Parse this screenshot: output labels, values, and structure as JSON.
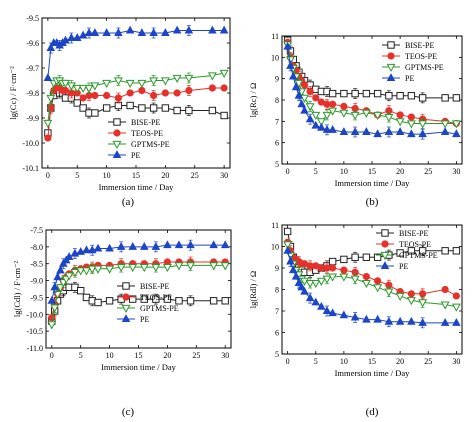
{
  "chart_data": [
    {
      "type": "line",
      "panel_label": "(a)",
      "xlabel": "Immersion time / Day",
      "ylabel": "lg(Cc) / F·cm⁻²",
      "xlim": [
        -1,
        31
      ],
      "ylim": [
        -10.1,
        -9.5
      ],
      "xticks": [
        0,
        5,
        10,
        15,
        20,
        25,
        30
      ],
      "yticks": [
        -10.1,
        -10.0,
        -9.9,
        -9.8,
        -9.7,
        -9.6,
        -9.5
      ],
      "ytick_labels": [
        "-10.1",
        "-10.0",
        "-9.9",
        "-9.8",
        "-9.7",
        "-9.6",
        "-9.5"
      ],
      "legend_position": "lower-right",
      "series": [
        {
          "name": "BISE-PE",
          "marker": "square-open",
          "color": "#222222",
          "x": [
            0,
            0.5,
            1,
            1.5,
            2,
            2.5,
            3,
            4,
            5,
            6,
            7,
            8,
            10,
            12,
            14,
            16,
            18,
            20,
            22,
            24,
            28,
            30
          ],
          "y": [
            -9.96,
            -9.86,
            -9.81,
            -9.79,
            -9.8,
            -9.8,
            -9.82,
            -9.82,
            -9.84,
            -9.86,
            -9.88,
            -9.88,
            -9.86,
            -9.85,
            -9.85,
            -9.86,
            -9.86,
            -9.86,
            -9.87,
            -9.87,
            -9.87,
            -9.89
          ]
        },
        {
          "name": "TEOS-PE",
          "marker": "circle-filled",
          "color": "#e8302a",
          "x": [
            0,
            0.5,
            1,
            1.5,
            2,
            2.5,
            3,
            4,
            5,
            6,
            7,
            8,
            10,
            12,
            14,
            16,
            18,
            20,
            22,
            24,
            28,
            30
          ],
          "y": [
            -9.98,
            -9.86,
            -9.79,
            -9.78,
            -9.78,
            -9.79,
            -9.79,
            -9.8,
            -9.8,
            -9.82,
            -9.81,
            -9.81,
            -9.81,
            -9.82,
            -9.8,
            -9.79,
            -9.81,
            -9.8,
            -9.8,
            -9.79,
            -9.78,
            -9.78
          ]
        },
        {
          "name": "GPTMS-PE",
          "marker": "triangle-down-open",
          "color": "#2a9a2a",
          "x": [
            0,
            0.5,
            1,
            1.5,
            2,
            2.5,
            3,
            4,
            5,
            6,
            7,
            8,
            10,
            12,
            14,
            16,
            18,
            20,
            22,
            24,
            28,
            30
          ],
          "y": [
            -9.92,
            -9.82,
            -9.76,
            -9.75,
            -9.75,
            -9.76,
            -9.76,
            -9.77,
            -9.78,
            -9.78,
            -9.78,
            -9.77,
            -9.76,
            -9.75,
            -9.76,
            -9.76,
            -9.75,
            -9.75,
            -9.74,
            -9.74,
            -9.73,
            -9.72
          ]
        },
        {
          "name": "PE",
          "marker": "triangle-up-filled",
          "color": "#1c45c8",
          "x": [
            0,
            0.5,
            1,
            1.5,
            2,
            2.5,
            3,
            4,
            5,
            6,
            7,
            8,
            10,
            12,
            14,
            16,
            18,
            20,
            22,
            24,
            28,
            30
          ],
          "y": [
            -9.74,
            -9.62,
            -9.6,
            -9.6,
            -9.61,
            -9.6,
            -9.59,
            -9.58,
            -9.58,
            -9.57,
            -9.56,
            -9.56,
            -9.56,
            -9.56,
            -9.55,
            -9.56,
            -9.56,
            -9.56,
            -9.55,
            -9.55,
            -9.55,
            -9.55
          ]
        }
      ]
    },
    {
      "type": "line",
      "panel_label": "(b)",
      "xlabel": "Immersion time / Day",
      "ylabel": "lg(Rc) / Ω",
      "xlim": [
        -1,
        31
      ],
      "ylim": [
        5,
        11
      ],
      "xticks": [
        0,
        5,
        10,
        15,
        20,
        25,
        30
      ],
      "yticks": [
        5,
        6,
        7,
        8,
        9,
        10,
        11
      ],
      "ytick_labels": [
        "5",
        "6",
        "7",
        "8",
        "9",
        "10",
        "11"
      ],
      "legend_position": "top-right",
      "series": [
        {
          "name": "BISE-PE",
          "marker": "square-open",
          "color": "#222222",
          "x": [
            0,
            0.5,
            1,
            1.5,
            2,
            2.5,
            3,
            4,
            5,
            6,
            7,
            8,
            10,
            12,
            14,
            16,
            18,
            20,
            22,
            24,
            28,
            30
          ],
          "y": [
            10.8,
            10.3,
            9.9,
            9.6,
            9.3,
            9.1,
            8.9,
            8.7,
            8.5,
            8.4,
            8.4,
            8.3,
            8.3,
            8.3,
            8.3,
            8.3,
            8.2,
            8.2,
            8.2,
            8.1,
            8.1,
            8.1
          ]
        },
        {
          "name": "TEOS-PE",
          "marker": "circle-filled",
          "color": "#e8302a",
          "x": [
            0,
            0.5,
            1,
            1.5,
            2,
            2.5,
            3,
            4,
            5,
            6,
            7,
            8,
            10,
            12,
            14,
            16,
            18,
            20,
            22,
            24,
            28,
            30
          ],
          "y": [
            10.7,
            10.0,
            9.6,
            9.4,
            9.1,
            8.9,
            8.7,
            8.4,
            8.1,
            7.9,
            7.8,
            7.8,
            7.7,
            7.6,
            7.5,
            7.3,
            7.5,
            7.3,
            7.2,
            7.1,
            7.0,
            6.9
          ]
        },
        {
          "name": "GPTMS-PE",
          "marker": "triangle-down-open",
          "color": "#2a9a2a",
          "x": [
            0,
            0.5,
            1,
            1.5,
            2,
            2.5,
            3,
            4,
            5,
            6,
            7,
            8,
            10,
            12,
            14,
            16,
            18,
            20,
            22,
            24,
            28,
            30
          ],
          "y": [
            10.6,
            9.9,
            9.5,
            9.1,
            8.8,
            8.4,
            8.1,
            7.7,
            7.3,
            7.0,
            7.3,
            7.5,
            7.4,
            7.3,
            7.4,
            7.3,
            7.2,
            7.0,
            6.9,
            6.9,
            6.9,
            6.9
          ]
        },
        {
          "name": "PE",
          "marker": "triangle-up-filled",
          "color": "#1c45c8",
          "x": [
            0,
            0.5,
            1,
            1.5,
            2,
            2.5,
            3,
            4,
            5,
            6,
            7,
            8,
            10,
            12,
            14,
            16,
            18,
            20,
            22,
            24,
            28,
            30
          ],
          "y": [
            10.5,
            9.6,
            9.1,
            8.6,
            8.2,
            7.8,
            7.5,
            7.1,
            6.8,
            6.7,
            6.6,
            6.6,
            6.5,
            6.5,
            6.5,
            6.4,
            6.5,
            6.5,
            6.4,
            6.4,
            6.5,
            6.4
          ]
        }
      ]
    },
    {
      "type": "line",
      "panel_label": "(c)",
      "xlabel": "Immersion time / Day",
      "ylabel": "lg(Cdl) / F·cm⁻²",
      "xlim": [
        -1,
        31
      ],
      "ylim": [
        -11.0,
        -7.5
      ],
      "xticks": [
        0,
        5,
        10,
        15,
        20,
        25,
        30
      ],
      "yticks": [
        -11.0,
        -10.5,
        -10.0,
        -9.5,
        -9.0,
        -8.5,
        -8.0,
        -7.5
      ],
      "ytick_labels": [
        "-11.0",
        "-10.5",
        "-10.0",
        "-9.5",
        "-9.0",
        "-8.5",
        "-8.0",
        "-7.5"
      ],
      "legend_position": "lower-right",
      "series": [
        {
          "name": "BISE-PE",
          "marker": "square-open",
          "color": "#222222",
          "x": [
            0,
            0.5,
            1,
            1.5,
            2,
            2.5,
            3,
            4,
            5,
            6,
            7,
            8,
            10,
            12,
            14,
            16,
            18,
            20,
            22,
            24,
            28,
            30
          ],
          "y": [
            -10.2,
            -9.9,
            -9.6,
            -9.4,
            -9.3,
            -9.2,
            -9.2,
            -9.2,
            -9.3,
            -9.5,
            -9.6,
            -9.65,
            -9.6,
            -9.55,
            -9.55,
            -9.55,
            -9.55,
            -9.55,
            -9.6,
            -9.6,
            -9.6,
            -9.6
          ]
        },
        {
          "name": "TEOS-PE",
          "marker": "circle-filled",
          "color": "#e8302a",
          "x": [
            0,
            0.5,
            1,
            1.5,
            2,
            2.5,
            3,
            4,
            5,
            6,
            7,
            8,
            10,
            12,
            14,
            16,
            18,
            20,
            22,
            24,
            28,
            30
          ],
          "y": [
            -10.1,
            -9.7,
            -9.4,
            -9.2,
            -9.0,
            -8.9,
            -8.8,
            -8.7,
            -8.65,
            -8.6,
            -8.6,
            -8.55,
            -8.55,
            -8.5,
            -8.5,
            -8.5,
            -8.5,
            -8.45,
            -8.45,
            -8.45,
            -8.45,
            -8.45
          ]
        },
        {
          "name": "GPTMS-PE",
          "marker": "triangle-down-open",
          "color": "#2a9a2a",
          "x": [
            0,
            0.5,
            1,
            1.5,
            2,
            2.5,
            3,
            4,
            5,
            6,
            7,
            8,
            10,
            12,
            14,
            16,
            18,
            20,
            22,
            24,
            28,
            30
          ],
          "y": [
            -10.3,
            -9.8,
            -9.4,
            -9.2,
            -9.05,
            -8.95,
            -8.85,
            -8.75,
            -8.7,
            -8.7,
            -8.65,
            -8.65,
            -8.65,
            -8.6,
            -8.6,
            -8.6,
            -8.6,
            -8.6,
            -8.55,
            -8.55,
            -8.55,
            -8.55
          ]
        },
        {
          "name": "PE",
          "marker": "triangle-up-filled",
          "color": "#1c45c8",
          "x": [
            0,
            0.5,
            1,
            1.5,
            2,
            2.5,
            3,
            4,
            5,
            6,
            7,
            8,
            10,
            12,
            14,
            16,
            18,
            20,
            22,
            24,
            28,
            30
          ],
          "y": [
            -9.6,
            -9.2,
            -8.9,
            -8.7,
            -8.5,
            -8.4,
            -8.3,
            -8.2,
            -8.15,
            -8.1,
            -8.1,
            -8.05,
            -8.05,
            -8.0,
            -8.0,
            -8.0,
            -8.0,
            -7.95,
            -7.95,
            -7.95,
            -7.95,
            -7.95
          ]
        }
      ]
    },
    {
      "type": "line",
      "panel_label": "(d)",
      "xlabel": "Immersion time / Day",
      "ylabel": "lg(Rdl) / Ω",
      "xlim": [
        -1,
        31
      ],
      "ylim": [
        5,
        11
      ],
      "xticks": [
        0,
        5,
        10,
        15,
        20,
        25,
        30
      ],
      "yticks": [
        5,
        6,
        7,
        8,
        9,
        10,
        11
      ],
      "ytick_labels": [
        "5",
        "6",
        "7",
        "8",
        "9",
        "10",
        "11"
      ],
      "legend_position": "top-right",
      "series": [
        {
          "name": "BISE-PE",
          "marker": "square-open",
          "color": "#222222",
          "x": [
            0,
            0.5,
            1,
            1.5,
            2,
            2.5,
            3,
            4,
            5,
            6,
            7,
            8,
            10,
            12,
            14,
            16,
            18,
            20,
            22,
            24,
            28,
            30
          ],
          "y": [
            10.7,
            10.0,
            9.5,
            9.2,
            9.0,
            8.9,
            8.8,
            8.8,
            8.9,
            9.0,
            9.1,
            9.3,
            9.4,
            9.5,
            9.5,
            9.5,
            9.6,
            9.7,
            9.8,
            9.8,
            9.8,
            9.8
          ]
        },
        {
          "name": "TEOS-PE",
          "marker": "circle-filled",
          "color": "#e8302a",
          "x": [
            0,
            0.5,
            1,
            1.5,
            2,
            2.5,
            3,
            4,
            5,
            6,
            7,
            8,
            10,
            12,
            14,
            16,
            18,
            20,
            22,
            24,
            28,
            30
          ],
          "y": [
            10.2,
            9.8,
            9.5,
            9.4,
            9.3,
            9.2,
            9.2,
            9.1,
            9.1,
            9.0,
            9.0,
            9.0,
            8.9,
            8.8,
            8.6,
            8.4,
            8.2,
            7.9,
            7.8,
            7.8,
            8.0,
            7.7
          ]
        },
        {
          "name": "GPTMS-PE",
          "marker": "triangle-down-open",
          "color": "#2a9a2a",
          "x": [
            0,
            0.5,
            1,
            1.5,
            2,
            2.5,
            3,
            4,
            5,
            6,
            7,
            8,
            10,
            12,
            14,
            16,
            18,
            20,
            22,
            24,
            28,
            30
          ],
          "y": [
            10.1,
            9.6,
            9.2,
            8.9,
            8.7,
            8.5,
            8.4,
            8.3,
            8.3,
            8.4,
            8.5,
            8.6,
            8.6,
            8.5,
            8.3,
            8.1,
            7.9,
            7.7,
            7.5,
            7.4,
            7.3,
            7.2
          ]
        },
        {
          "name": "PE",
          "marker": "triangle-up-filled",
          "color": "#1c45c8",
          "x": [
            0,
            0.5,
            1,
            1.5,
            2,
            2.5,
            3,
            4,
            5,
            6,
            7,
            8,
            10,
            12,
            14,
            16,
            18,
            20,
            22,
            24,
            28,
            30
          ],
          "y": [
            9.8,
            9.3,
            8.9,
            8.6,
            8.3,
            8.1,
            7.9,
            7.6,
            7.4,
            7.2,
            7.0,
            6.9,
            6.8,
            6.7,
            6.6,
            6.6,
            6.5,
            6.5,
            6.5,
            6.45,
            6.45,
            6.45
          ]
        }
      ]
    }
  ]
}
